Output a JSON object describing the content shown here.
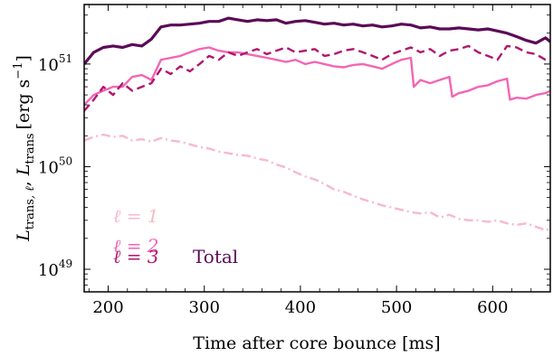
{
  "chart_data": {
    "type": "line",
    "xlabel": "Time after core bounce [ms]",
    "ylabel_parts": {
      "L1": "L",
      "sub1": "trans",
      "mid": ", ℓ",
      "sep": ", ",
      "L2": "L",
      "sub2": "trans",
      "bracket_open": "[erg s",
      "sup": "−1",
      "bracket_close": "]"
    },
    "xlim": [
      175,
      660
    ],
    "ylim_log10": [
      48.78,
      51.58
    ],
    "y_scale": "log",
    "xticks": [
      200,
      300,
      400,
      500,
      600
    ],
    "xtick_labels": [
      "200",
      "300",
      "400",
      "500",
      "600"
    ],
    "ytick_exponents": [
      49,
      50,
      51
    ],
    "ytick_base": "10",
    "ytick_exp_labels": [
      "49",
      "50",
      "51"
    ],
    "legend_placement": "lower-left",
    "series": [
      {
        "name": "ℓ = 1",
        "color": "#f7b9c8",
        "dash": "dashdot",
        "x": [
          175,
          185,
          195,
          205,
          215,
          225,
          235,
          245,
          255,
          265,
          275,
          285,
          295,
          305,
          315,
          325,
          335,
          345,
          355,
          365,
          375,
          385,
          395,
          405,
          415,
          425,
          435,
          445,
          455,
          465,
          475,
          485,
          495,
          505,
          515,
          525,
          535,
          545,
          555,
          565,
          575,
          585,
          595,
          605,
          615,
          625,
          635,
          645,
          655,
          660
        ],
        "y": [
          1.8e+50,
          1.95e+50,
          2.05e+50,
          1.95e+50,
          2e+50,
          1.8e+50,
          1.85e+50,
          1.75e+50,
          1.9e+50,
          1.8e+50,
          1.75e+50,
          1.65e+50,
          1.55e+50,
          1.5e+50,
          1.4e+50,
          1.35e+50,
          1.3e+50,
          1.28e+50,
          1.2e+50,
          1.15e+50,
          1.05e+50,
          9.8e+49,
          8.8e+49,
          8e+49,
          7.5e+49,
          6.8e+49,
          6e+49,
          5.7e+49,
          5.2e+49,
          4.8e+49,
          4.5e+49,
          4.2e+49,
          4e+49,
          3.8e+49,
          3.6e+49,
          3.5e+49,
          3.6e+49,
          3.2e+49,
          3.4e+49,
          3.1e+49,
          3e+49,
          3e+49,
          2.9e+49,
          3e+49,
          2.8e+49,
          2.7e+49,
          2.8e+49,
          2.6e+49,
          2.4e+49,
          2.5e+49
        ]
      },
      {
        "name": "ℓ = 2",
        "color": "#f266b5",
        "dash": "solid",
        "x": [
          175,
          185,
          195,
          205,
          215,
          225,
          235,
          245,
          255,
          265,
          275,
          285,
          295,
          305,
          315,
          325,
          335,
          345,
          355,
          365,
          375,
          385,
          395,
          405,
          415,
          425,
          435,
          445,
          455,
          465,
          475,
          485,
          495,
          505,
          515,
          518,
          525,
          535,
          545,
          555,
          558,
          565,
          575,
          585,
          595,
          605,
          615,
          618,
          625,
          635,
          645,
          655,
          660
        ],
        "y": [
          4e+50,
          5e+50,
          5.5e+50,
          6e+50,
          6e+50,
          7.5e+50,
          7.8e+50,
          7e+50,
          1.1e+51,
          1.15e+51,
          1.2e+51,
          1.3e+51,
          1.4e+51,
          1.45e+51,
          1.35e+51,
          1.3e+51,
          1.3e+51,
          1.25e+51,
          1.2e+51,
          1.15e+51,
          1.1e+51,
          1.05e+51,
          1.1e+51,
          1e+51,
          1.05e+51,
          1e+51,
          9.5e+50,
          9.3e+50,
          9.8e+50,
          1e+51,
          9.5e+50,
          9e+50,
          1e+51,
          1.1e+51,
          1.15e+51,
          6e+50,
          7e+50,
          6.5e+50,
          7e+50,
          7.5e+50,
          4.8e+50,
          5.2e+50,
          5.5e+50,
          6e+50,
          6.2e+50,
          6.8e+50,
          7.2e+50,
          4.5e+50,
          4.7e+50,
          4.6e+50,
          5e+50,
          5.2e+50,
          5.5e+50
        ]
      },
      {
        "name": "ℓ = 3",
        "color": "#b0166f",
        "dash": "dashed",
        "x": [
          175,
          185,
          195,
          205,
          215,
          225,
          235,
          245,
          255,
          265,
          275,
          285,
          295,
          305,
          315,
          325,
          335,
          345,
          355,
          365,
          375,
          385,
          395,
          405,
          415,
          425,
          435,
          445,
          455,
          465,
          475,
          485,
          495,
          505,
          515,
          525,
          535,
          545,
          555,
          565,
          575,
          585,
          595,
          605,
          615,
          625,
          635,
          645,
          655,
          660
        ],
        "y": [
          3.5e+50,
          4.5e+50,
          6e+50,
          5e+50,
          6.5e+50,
          5.5e+50,
          6e+50,
          6.5e+50,
          9e+50,
          8e+50,
          9.5e+50,
          8.5e+50,
          1e+51,
          1.2e+51,
          1.1e+51,
          1.3e+51,
          1.2e+51,
          1.3e+51,
          1.4e+51,
          1.25e+51,
          1.35e+51,
          1.45e+51,
          1.3e+51,
          1.35e+51,
          1.4e+51,
          1.2e+51,
          1.25e+51,
          1.35e+51,
          1.4e+51,
          1.3e+51,
          1.2e+51,
          1.1e+51,
          1.25e+51,
          1.35e+51,
          1.45e+51,
          1.3e+51,
          1.4e+51,
          1.2e+51,
          1.35e+51,
          1.4e+51,
          1.5e+51,
          1.3e+51,
          1.2e+51,
          1.1e+51,
          1.5e+51,
          1.45e+51,
          1.3e+51,
          1.25e+51,
          1.1e+51,
          1.05e+51
        ]
      },
      {
        "name": "Total",
        "color": "#5b0a57",
        "dash": "solid",
        "x": [
          175,
          185,
          195,
          205,
          215,
          225,
          235,
          245,
          255,
          265,
          275,
          285,
          295,
          305,
          315,
          325,
          335,
          345,
          355,
          365,
          375,
          385,
          395,
          405,
          415,
          425,
          435,
          445,
          455,
          465,
          475,
          485,
          495,
          505,
          515,
          525,
          535,
          545,
          555,
          565,
          575,
          585,
          595,
          605,
          615,
          625,
          635,
          645,
          655,
          660
        ],
        "y": [
          1e+51,
          1.3e+51,
          1.45e+51,
          1.5e+51,
          1.45e+51,
          1.55e+51,
          1.5e+51,
          1.75e+51,
          2.3e+51,
          2.4e+51,
          2.4e+51,
          2.45e+51,
          2.5e+51,
          2.6e+51,
          2.6e+51,
          2.8e+51,
          2.7e+51,
          2.6e+51,
          2.7e+51,
          2.65e+51,
          2.7e+51,
          2.5e+51,
          2.6e+51,
          2.65e+51,
          2.55e+51,
          2.45e+51,
          2.5e+51,
          2.4e+51,
          2.45e+51,
          2.35e+51,
          2.4e+51,
          2.3e+51,
          2.35e+51,
          2.45e+51,
          2.4e+51,
          2.25e+51,
          2.3e+51,
          2.2e+51,
          2.2e+51,
          2.25e+51,
          2.2e+51,
          2.15e+51,
          2.2e+51,
          2.1e+51,
          2e+51,
          1.85e+51,
          1.7e+51,
          1.6e+51,
          1.8e+51,
          1.65e+51
        ]
      }
    ]
  },
  "legend": {
    "l1_label": "ℓ = 1",
    "l2_label": "ℓ = 2",
    "l3_label": "ℓ = 3",
    "total_label": "Total"
  }
}
